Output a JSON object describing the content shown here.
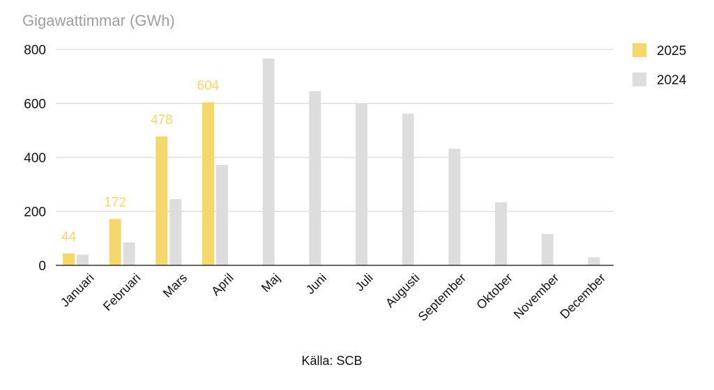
{
  "chart_data": {
    "type": "bar",
    "title": "Gigawattimmar (GWh)",
    "source": "Källa: SCB",
    "categories": [
      "Januari",
      "Februari",
      "Mars",
      "April",
      "Maj",
      "Juni",
      "Juli",
      "Augusti",
      "September",
      "Oktober",
      "November",
      "December"
    ],
    "series": [
      {
        "name": "2025",
        "color": "#f5d76e",
        "values": [
          44,
          172,
          478,
          604,
          null,
          null,
          null,
          null,
          null,
          null,
          null,
          null
        ],
        "data_labels": true
      },
      {
        "name": "2024",
        "color": "#dddddd",
        "values": [
          40,
          85,
          245,
          372,
          766,
          645,
          601,
          562,
          432,
          234,
          116,
          30
        ],
        "data_labels": false
      }
    ],
    "yticks": [
      0,
      200,
      400,
      600,
      800
    ],
    "ylim": [
      0,
      800
    ],
    "grid": true,
    "legend_position": "right"
  }
}
